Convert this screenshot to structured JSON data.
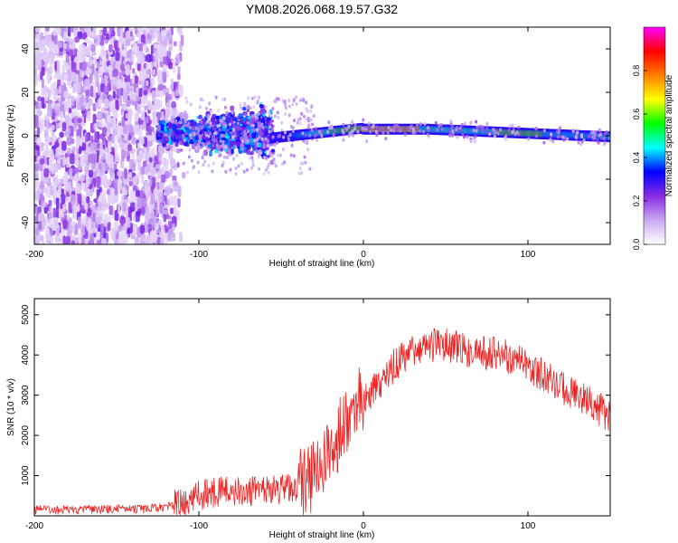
{
  "title": "YM08.2026.068.19.57.G32",
  "chart_data": [
    {
      "type": "heatmap",
      "name": "spectrogram",
      "xlabel": "Height of straight line (km)",
      "ylabel": "Frequency (Hz)",
      "xlim": [
        -200,
        150
      ],
      "ylim": [
        -50,
        50
      ],
      "xticks": [
        -200,
        -100,
        0,
        100
      ],
      "yticks": [
        -40,
        -20,
        0,
        20,
        40
      ],
      "description_of_signal": [
        {
          "x_range": [
            -200,
            -120
          ],
          "character": "diffuse noise across all frequencies"
        },
        {
          "x_range": [
            -120,
            -55
          ],
          "character": "broad carrier band widening to about ±10 Hz"
        },
        {
          "x_range": [
            -55,
            150
          ],
          "character": "narrow carrier line near 0-5 Hz, peaking at about 10-30 km"
        }
      ],
      "colorbar": {
        "label": "Normalized spectral amplitude",
        "range": [
          0.0,
          1.0
        ],
        "ticks": [
          0.0,
          0.2,
          0.4,
          0.6,
          0.8
        ],
        "colors": [
          "#ffffff",
          "#c9a8f2",
          "#8a2be2",
          "#0000ff",
          "#00ffff",
          "#00ff00",
          "#ffff00",
          "#ff8000",
          "#ff0000",
          "#ff00ff"
        ]
      }
    },
    {
      "type": "line",
      "name": "snr",
      "xlabel": "Height of straight line (km)",
      "ylabel": "SNR (10 * v/v)",
      "xlim": [
        -200,
        150
      ],
      "ylim": [
        0,
        5400
      ],
      "xticks": [
        -200,
        -100,
        0,
        100
      ],
      "yticks": [
        1000,
        2000,
        3000,
        4000,
        5000
      ],
      "color": "#ee2222",
      "series": [
        {
          "name": "SNR",
          "x": [
            -200,
            -190,
            -180,
            -170,
            -160,
            -150,
            -140,
            -130,
            -120,
            -110,
            -100,
            -90,
            -80,
            -70,
            -60,
            -50,
            -40,
            -30,
            -20,
            -15,
            -10,
            -5,
            0,
            10,
            20,
            30,
            40,
            50,
            60,
            70,
            80,
            90,
            100,
            110,
            120,
            130,
            140,
            150
          ],
          "values": [
            150,
            150,
            150,
            155,
            160,
            165,
            170,
            180,
            220,
            320,
            500,
            600,
            620,
            600,
            600,
            650,
            750,
            1000,
            1600,
            2000,
            2400,
            2700,
            2900,
            3300,
            3800,
            4150,
            4250,
            4250,
            4150,
            4050,
            4050,
            3900,
            3700,
            3500,
            3200,
            3000,
            2800,
            2400
          ]
        }
      ]
    }
  ]
}
